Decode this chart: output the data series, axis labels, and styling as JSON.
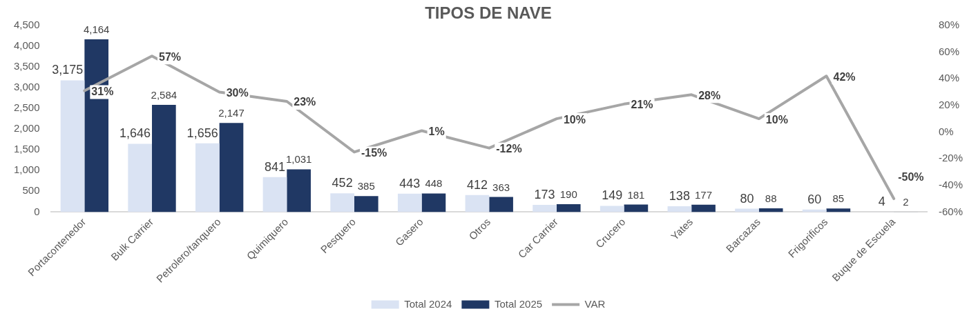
{
  "chart_data": {
    "type": "bar",
    "title": "TIPOS DE NAVE",
    "categories": [
      "Portacontenedor",
      "Bulk Carrier",
      "Petrolero/tanquero",
      "Quimiquero",
      "Pesquero",
      "Gasero",
      "Otros",
      "Car Carrier",
      "Crucero",
      "Yates",
      "Barcazas",
      "Frigorificos",
      "Buque de Escuela"
    ],
    "series": [
      {
        "name": "Total 2024",
        "color": "#dae3f3",
        "values": [
          3175,
          1646,
          1656,
          841,
          452,
          443,
          412,
          173,
          149,
          138,
          80,
          60,
          4
        ],
        "value_labels": [
          "3,175",
          "1,646",
          "1,656",
          "841",
          "452",
          "443",
          "412",
          "173",
          "149",
          "138",
          "80",
          "60",
          "4"
        ]
      },
      {
        "name": "Total 2025",
        "color": "#203864",
        "colors": [
          "#203864",
          "#203864",
          "#203864",
          "#203864",
          "#203864",
          "#203864",
          "#203864",
          "#203864",
          "#203864",
          "#203864",
          "#203864",
          "#203864",
          "#8497b0"
        ],
        "values": [
          4164,
          2584,
          2147,
          1031,
          385,
          448,
          363,
          190,
          181,
          177,
          88,
          85,
          2
        ],
        "value_labels": [
          "4,164",
          "2,584",
          "2,147",
          "1,031",
          "385",
          "448",
          "363",
          "190",
          "181",
          "177",
          "88",
          "85",
          "2"
        ]
      },
      {
        "name": "VAR",
        "type": "line",
        "axis": "y2",
        "color": "#a6a6a6",
        "values": [
          31,
          57,
          30,
          23,
          -15,
          1,
          -12,
          10,
          21,
          28,
          10,
          42,
          -50
        ],
        "value_labels": [
          "31%",
          "57%",
          "30%",
          "23%",
          "-15%",
          "1%",
          "-12%",
          "10%",
          "21%",
          "28%",
          "10%",
          "42%",
          "-50%"
        ]
      }
    ],
    "ylim": [
      0,
      4500
    ],
    "yticks": [
      0,
      500,
      {
        "value": 1000,
        "label": "1,000"
      },
      {
        "value": 1500,
        "label": "1,500"
      },
      {
        "value": 2000,
        "label": "2,000"
      },
      {
        "value": 2500,
        "label": "2,500"
      },
      {
        "value": 3000,
        "label": "3,000"
      },
      {
        "value": 3500,
        "label": "3,500"
      },
      {
        "value": 4000,
        "label": "4,000"
      },
      {
        "value": 4500,
        "label": "4,500"
      }
    ],
    "y2lim": [
      -60,
      80
    ],
    "y2ticks": [
      {
        "value": -60,
        "label": "-60%"
      },
      {
        "value": -40,
        "label": "-40%"
      },
      {
        "value": -20,
        "label": "-20%"
      },
      {
        "value": 0,
        "label": "0%"
      },
      {
        "value": 20,
        "label": "20%"
      },
      {
        "value": 40,
        "label": "40%"
      },
      {
        "value": 60,
        "label": "60%"
      },
      {
        "value": 80,
        "label": "80%"
      }
    ],
    "grid": false,
    "legend": "bottom",
    "marker": "none",
    "line_style": "solid"
  }
}
